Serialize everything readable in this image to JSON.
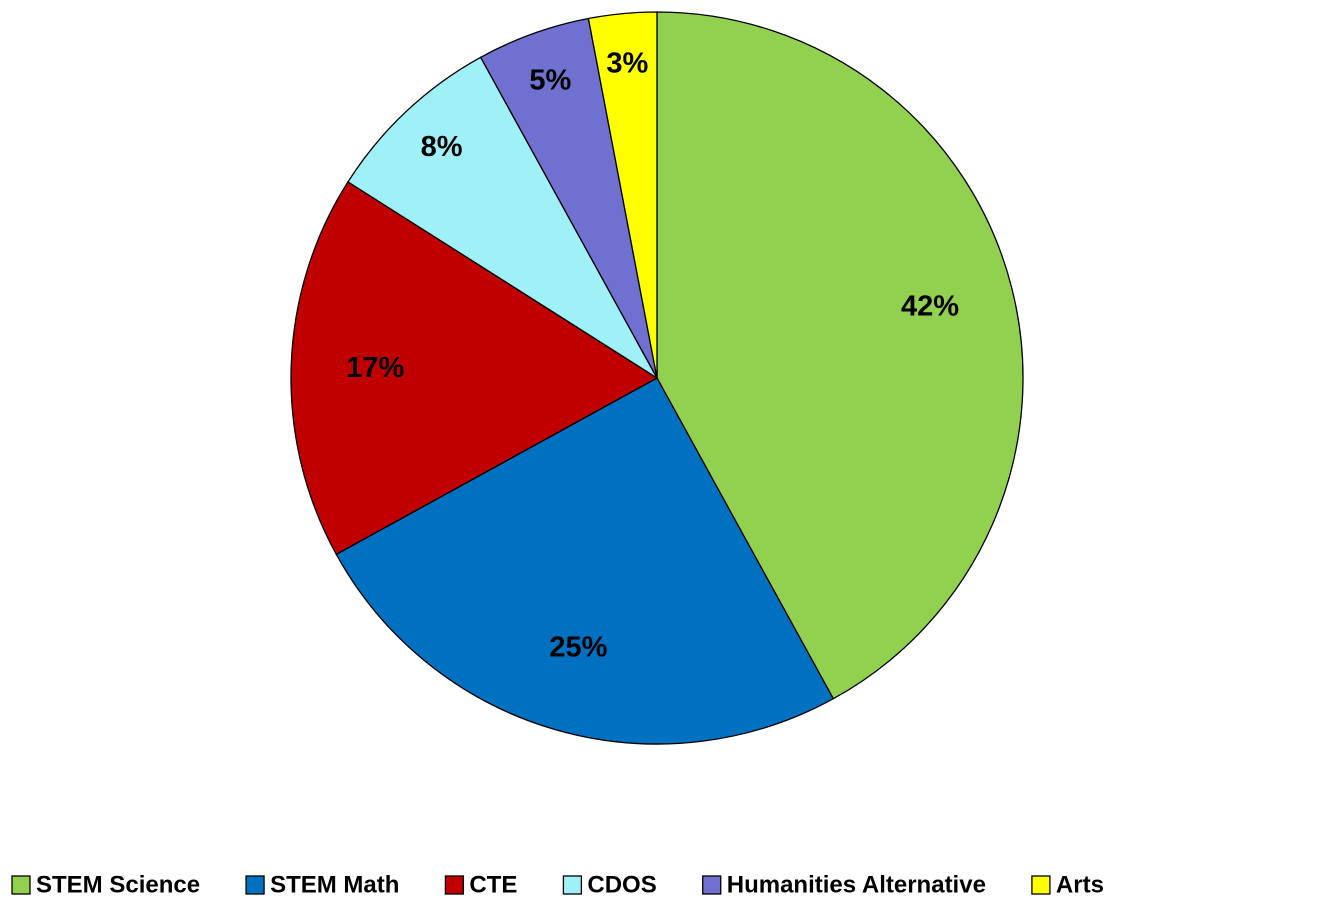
{
  "chart_data": {
    "type": "pie",
    "categories": [
      "STEM Science",
      "STEM Math",
      "CTE",
      "CDOS",
      "Humanities Alternative",
      "Arts"
    ],
    "values": [
      42,
      25,
      17,
      8,
      5,
      3
    ],
    "value_labels": [
      "42%",
      "25%",
      "17%",
      "8%",
      "5%",
      "3%"
    ],
    "colors": [
      "#92d050",
      "#0070c0",
      "#c00000",
      "#a0f0f8",
      "#7070d0",
      "#ffff00"
    ],
    "legend": "bottom"
  }
}
